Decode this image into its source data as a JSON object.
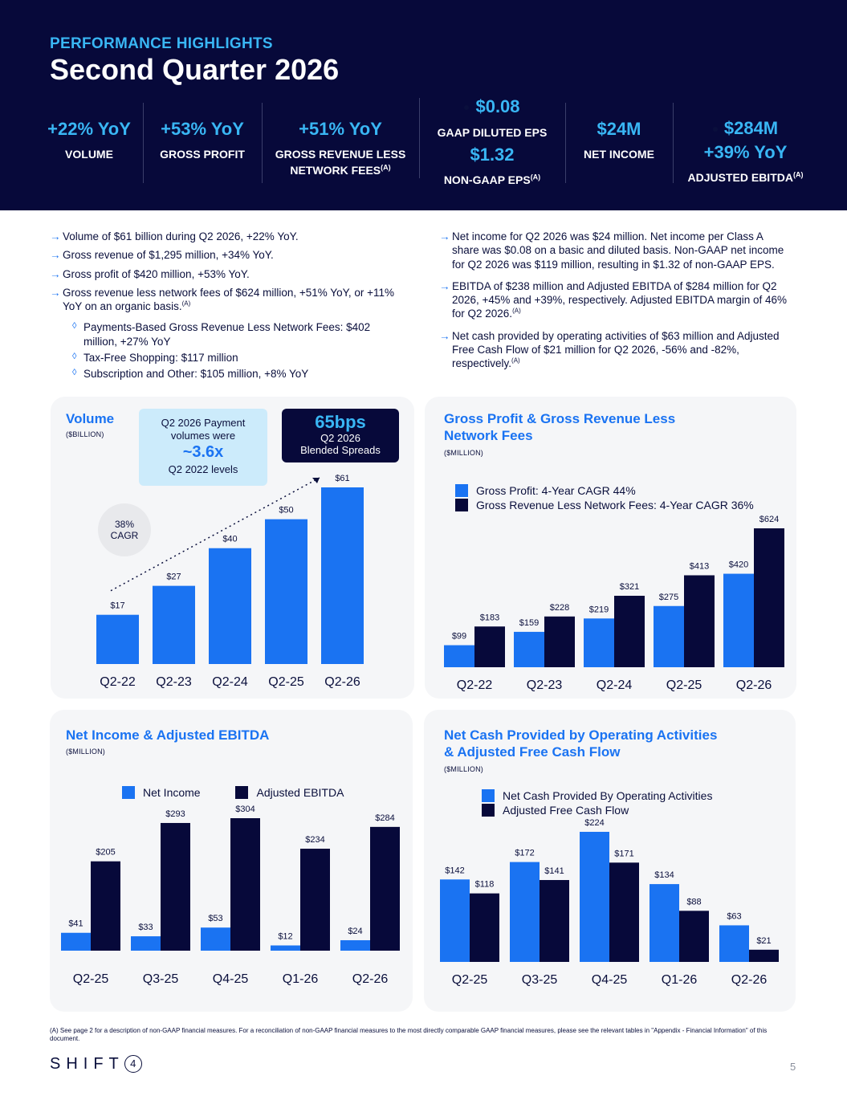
{
  "header": {
    "kicker": "PERFORMANCE HIGHLIGHTS",
    "title": "Second Quarter 2026"
  },
  "kpis": [
    {
      "value": "+22% YoY",
      "label": "VOLUME"
    },
    {
      "value": "+53% YoY",
      "label": "GROSS PROFIT"
    },
    {
      "value": "+51% YoY",
      "label_line1": "GROSS REVENUE LESS",
      "label_line2": "NETWORK FEES",
      "sup": "(A)"
    },
    {
      "value": "$0.08",
      "label": "GAAP DILUTED EPS",
      "value2": "$1.32",
      "label2": "NON-GAAP EPS",
      "sup": "(A)"
    },
    {
      "value": "$24M",
      "label": "NET INCOME"
    },
    {
      "value": "$284M",
      "value2": "+39% YoY",
      "label": "ADJUSTED EBITDA",
      "sup": "(A)"
    }
  ],
  "bullets_left": [
    "Volume of $61 billion during Q2 2026, +22% YoY.",
    "Gross revenue of $1,295 million,  +34% YoY.",
    "Gross profit of $420 million, +53% YoY.",
    "Gross revenue less network fees of $624 million, +51% YoY, or +11% YoY on an organic basis."
  ],
  "bullets_left_sup": "(A)",
  "sub_bullets": [
    "Payments-Based Gross Revenue Less Network Fees: $402 million, +27% YoY",
    "Tax-Free Shopping: $117 million",
    "Subscription and Other: $105 million, +8% YoY"
  ],
  "bullets_right": [
    "Net income for Q2 2026 was $24 million. Net income per Class A share was $0.08 on a basic and diluted basis. Non-GAAP net income for Q2 2026 was $119 million, resulting in $1.32 of non-GAAP EPS.",
    "EBITDA of $238 million and Adjusted EBITDA of $284 million for Q2 2026, +45% and +39%, respectively. Adjusted EBITDA margin of 46% for Q2 2026.",
    "Net cash provided by operating activities of $63 million and Adjusted Free Cash Flow of $21 million for Q2 2026, -56% and -82%, respectively."
  ],
  "bullets_right_sup": "(A)",
  "arrow_glyph": "→",
  "diamond_glyph": "◊",
  "callouts": {
    "payment_line1": "Q2 2026 Payment",
    "payment_line2": "volumes were",
    "payment_big": "~3.6x",
    "payment_line3": "Q2 2022 levels",
    "spread_big": "65bps",
    "spread_line1": "Q2 2026",
    "spread_line2": "Blended Spreads",
    "cagr_line1": "38%",
    "cagr_line2": "CAGR"
  },
  "colors": {
    "navy": "#07093a",
    "blue": "#1a73f2",
    "cyan": "#39b6f4",
    "ink": "#0a0f3c"
  },
  "chart_data": [
    {
      "type": "bar",
      "title": "Volume",
      "unit": "($BILLION)",
      "categories": [
        "Q2-22",
        "Q2-23",
        "Q2-24",
        "Q2-25",
        "Q2-26"
      ],
      "series": [
        {
          "values": [
            17,
            27,
            40,
            50,
            61
          ],
          "labels": [
            "$17",
            "$27",
            "$40",
            "$50",
            "$61"
          ]
        }
      ],
      "ylim": [
        0,
        61
      ]
    },
    {
      "type": "bar",
      "title_line1": "Gross Profit & Gross Revenue Less",
      "title_line2": "Network Fees",
      "unit": "($MILLION)",
      "legend_position": "top",
      "categories": [
        "Q2-22",
        "Q2-23",
        "Q2-24",
        "Q2-25",
        "Q2-26"
      ],
      "series": [
        {
          "name": "Gross Profit: 4-Year CAGR 44%",
          "values": [
            99,
            159,
            219,
            275,
            420
          ],
          "labels": [
            "$99",
            "$159",
            "$219",
            "$275",
            "$420"
          ]
        },
        {
          "name": "Gross Revenue Less Network Fees: 4-Year CAGR 36%",
          "values": [
            183,
            228,
            321,
            413,
            624
          ],
          "labels": [
            "$183",
            "$228",
            "$321",
            "$413",
            "$624"
          ]
        }
      ],
      "ylim": [
        0,
        624
      ]
    },
    {
      "type": "bar",
      "title": "Net Income & Adjusted EBITDA",
      "unit": "($MILLION)",
      "legend_position": "top",
      "categories": [
        "Q2-25",
        "Q3-25",
        "Q4-25",
        "Q1-26",
        "Q2-26"
      ],
      "series": [
        {
          "name": "Net Income",
          "values": [
            41,
            33,
            53,
            12,
            24
          ],
          "labels": [
            "$41",
            "$33",
            "$53",
            "$12",
            "$24"
          ]
        },
        {
          "name": "Adjusted EBITDA",
          "values": [
            205,
            293,
            304,
            234,
            284
          ],
          "labels": [
            "$205",
            "$293",
            "$304",
            "$234",
            "$284"
          ]
        }
      ],
      "ylim": [
        0,
        304
      ]
    },
    {
      "type": "bar",
      "title_line1": "Net Cash Provided by Operating Activities",
      "title_line2": "& Adjusted Free Cash Flow",
      "unit": "($MILLION)",
      "legend_position": "top",
      "categories": [
        "Q2-25",
        "Q3-25",
        "Q4-25",
        "Q1-26",
        "Q2-26"
      ],
      "series": [
        {
          "name": "Net Cash Provided By Operating Activities",
          "values": [
            142,
            172,
            224,
            134,
            63
          ],
          "labels": [
            "$142",
            "$172",
            "$224",
            "$134",
            "$63"
          ]
        },
        {
          "name": "Adjusted Free Cash Flow",
          "values": [
            118,
            141,
            171,
            88,
            21
          ],
          "labels": [
            "$118",
            "$141",
            "$171",
            "$88",
            "$21"
          ]
        }
      ],
      "ylim": [
        0,
        224
      ]
    }
  ],
  "footnote": "(A) See page 2 for a description of non-GAAP financial measures. For a reconciliation of non-GAAP financial measures to the most directly comparable GAAP financial measures, please see the relevant tables in \"Appendix - Financial Information\" of this document.",
  "logo": {
    "text": "SHIFT",
    "digit": "4"
  },
  "page_number": "5"
}
